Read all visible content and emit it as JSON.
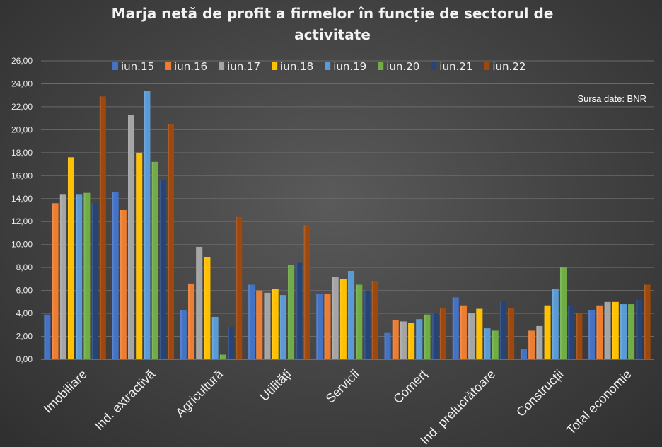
{
  "chart_data": {
    "type": "bar",
    "title": "Marja  netă de profit  a firmelor  în funcție de sectorul  de activitate",
    "title_lines": [
      "Marja  netă de profit  a firmelor  în funcție de sectorul  de",
      "activitate"
    ],
    "source_note": "Sursa date: BNR",
    "categories": [
      "Imobiliare",
      "Ind. extractivă",
      "Agricultură",
      "Utilități",
      "Servicii",
      "Comerț",
      "Ind. prelucrătoare",
      "Construcții",
      "Total economie"
    ],
    "ylim": [
      0,
      26
    ],
    "yticks": [
      "0,00",
      "2,00",
      "4,00",
      "6,00",
      "8,00",
      "10,00",
      "12,00",
      "14,00",
      "16,00",
      "18,00",
      "20,00",
      "22,00",
      "24,00",
      "26,00"
    ],
    "grid": true,
    "legend_position": "top",
    "series": [
      {
        "name": "iun.15",
        "color": "#4472C4",
        "values": [
          3.9,
          14.6,
          4.3,
          6.5,
          5.7,
          2.3,
          5.4,
          0.9,
          4.3
        ]
      },
      {
        "name": "iun.16",
        "color": "#ED7D31",
        "values": [
          13.6,
          13.0,
          6.6,
          6.0,
          5.7,
          3.4,
          4.7,
          2.5,
          4.7
        ]
      },
      {
        "name": "iun.17",
        "color": "#A5A5A5",
        "values": [
          14.4,
          21.3,
          9.8,
          5.8,
          7.2,
          3.3,
          4.0,
          2.9,
          5.0
        ]
      },
      {
        "name": "iun.18",
        "color": "#FFC000",
        "values": [
          17.6,
          18.0,
          8.9,
          6.1,
          7.0,
          3.2,
          4.4,
          4.7,
          5.0
        ]
      },
      {
        "name": "iun.19",
        "color": "#5B9BD5",
        "values": [
          14.4,
          23.4,
          3.7,
          5.6,
          7.7,
          3.5,
          2.7,
          6.1,
          4.8
        ]
      },
      {
        "name": "iun.20",
        "color": "#70AD47",
        "values": [
          14.5,
          17.2,
          0.4,
          8.2,
          6.5,
          3.9,
          2.5,
          8.0,
          4.8
        ]
      },
      {
        "name": "iun.21",
        "color": "#264478",
        "values": [
          13.6,
          15.6,
          2.8,
          8.4,
          6.0,
          4.0,
          5.1,
          4.7,
          5.2
        ]
      },
      {
        "name": "iun.22",
        "color": "#9E480E",
        "values": [
          22.9,
          20.5,
          12.4,
          11.7,
          6.8,
          4.5,
          4.5,
          4.0,
          6.5
        ]
      }
    ]
  }
}
